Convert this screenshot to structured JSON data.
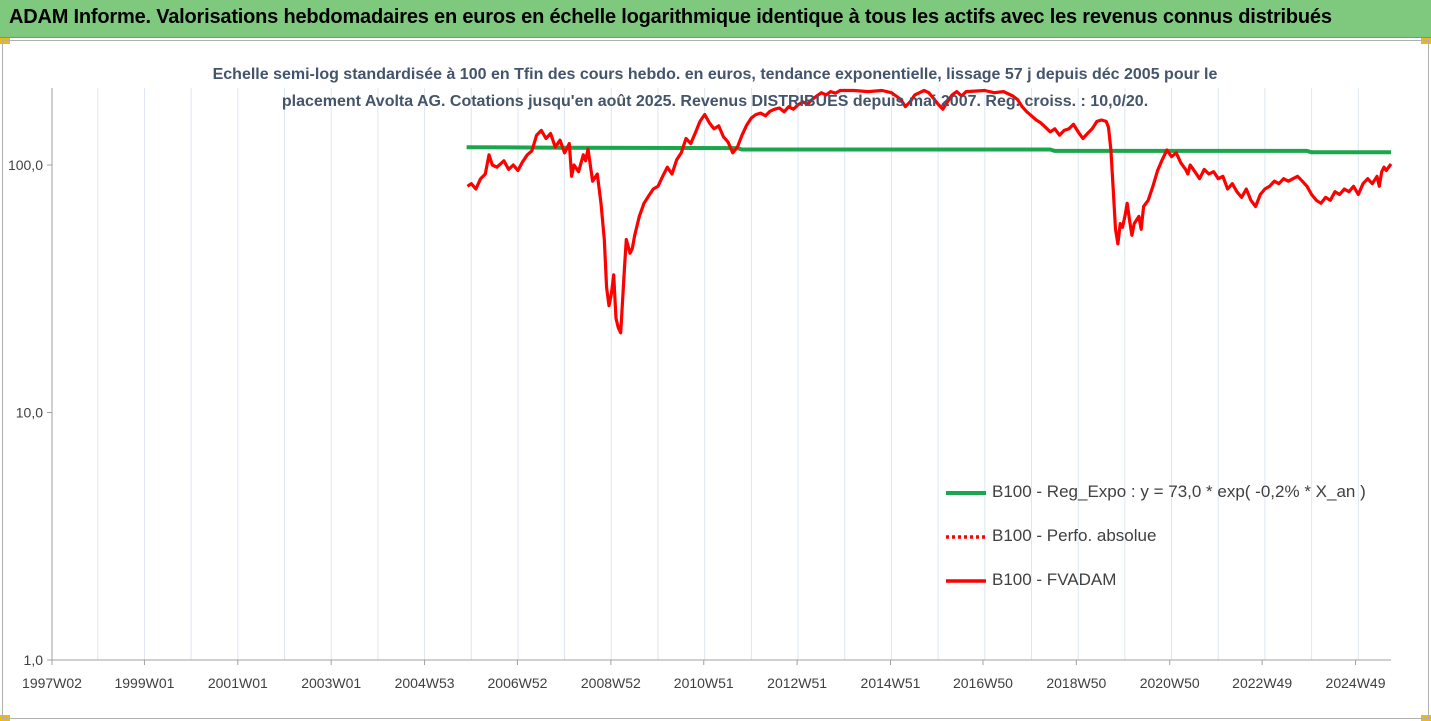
{
  "header": {
    "title": "ADAM Informe. Valorisations hebdomadaires en euros en échelle logarithmique identique à tous les actifs avec les revenus connus distribués"
  },
  "chart_data": {
    "type": "line",
    "subtitle_line1": "Echelle semi-log standardisée à 100 en Tfin des cours hebdo. en euros, tendance exponentielle, lissage 57 j depuis déc 2005 pour le",
    "subtitle_line2": "placement Avolta AG. Cotations jusqu'en août 2025.  Revenus DISTRIBUES depuis mai 2007. Reg. croiss. : 10,0/20.",
    "y_scale": "log",
    "ylim": [
      1,
      200
    ],
    "y_ticks": [
      {
        "value": 1,
        "label": "1,0"
      },
      {
        "value": 10,
        "label": "10,0"
      },
      {
        "value": 100,
        "label": "100,0"
      }
    ],
    "xlim": [
      1997.02,
      2025.7
    ],
    "x_ticks": [
      {
        "value": 1997.02,
        "label": "1997W02"
      },
      {
        "value": 1999.0,
        "label": "1999W01"
      },
      {
        "value": 2001.0,
        "label": "2001W01"
      },
      {
        "value": 2003.0,
        "label": "2003W01"
      },
      {
        "value": 2005.0,
        "label": "2004W53"
      },
      {
        "value": 2006.99,
        "label": "2006W52"
      },
      {
        "value": 2008.99,
        "label": "2008W52"
      },
      {
        "value": 2010.98,
        "label": "2010W51"
      },
      {
        "value": 2012.98,
        "label": "2012W51"
      },
      {
        "value": 2014.98,
        "label": "2014W51"
      },
      {
        "value": 2016.96,
        "label": "2016W50"
      },
      {
        "value": 2018.96,
        "label": "2018W50"
      },
      {
        "value": 2020.96,
        "label": "2020W50"
      },
      {
        "value": 2022.94,
        "label": "2022W49"
      },
      {
        "value": 2024.94,
        "label": "2024W49"
      }
    ],
    "grid": "vertical",
    "legend_position": "lower-right",
    "series": [
      {
        "name": "B100 - Reg_Expo : y = 73,0 * exp( -0,2% *  X_an )",
        "color": "#1aa64a",
        "style": "solid",
        "points": [
          [
            2005.9,
            118
          ],
          [
            2008.0,
            117.5
          ],
          [
            2011.7,
            117
          ],
          [
            2011.8,
            115.5
          ],
          [
            2018.4,
            115.5
          ],
          [
            2018.5,
            114
          ],
          [
            2023.9,
            114
          ],
          [
            2024.0,
            112.5
          ],
          [
            2025.7,
            112.5
          ]
        ]
      },
      {
        "name": "B100 - Perfo. absolue",
        "color": "#ff0000",
        "style": "dotted",
        "points": []
      },
      {
        "name": "B100 - FVADAM",
        "color": "#ff0000",
        "style": "solid",
        "points": [
          [
            2005.92,
            82
          ],
          [
            2006.0,
            84
          ],
          [
            2006.1,
            80
          ],
          [
            2006.2,
            88
          ],
          [
            2006.3,
            92
          ],
          [
            2006.38,
            110
          ],
          [
            2006.45,
            100
          ],
          [
            2006.55,
            98
          ],
          [
            2006.7,
            104
          ],
          [
            2006.8,
            96
          ],
          [
            2006.9,
            100
          ],
          [
            2007.0,
            95
          ],
          [
            2007.1,
            103
          ],
          [
            2007.2,
            110
          ],
          [
            2007.3,
            114
          ],
          [
            2007.4,
            132
          ],
          [
            2007.5,
            138
          ],
          [
            2007.6,
            128
          ],
          [
            2007.7,
            134
          ],
          [
            2007.8,
            118
          ],
          [
            2007.9,
            126
          ],
          [
            2008.0,
            112
          ],
          [
            2008.1,
            122
          ],
          [
            2008.15,
            90
          ],
          [
            2008.2,
            100
          ],
          [
            2008.3,
            94
          ],
          [
            2008.4,
            110
          ],
          [
            2008.45,
            104
          ],
          [
            2008.5,
            116
          ],
          [
            2008.55,
            100
          ],
          [
            2008.6,
            86
          ],
          [
            2008.7,
            92
          ],
          [
            2008.78,
            70
          ],
          [
            2008.85,
            50
          ],
          [
            2008.9,
            32
          ],
          [
            2008.95,
            27
          ],
          [
            2009.0,
            30
          ],
          [
            2009.05,
            36
          ],
          [
            2009.1,
            24
          ],
          [
            2009.15,
            22
          ],
          [
            2009.2,
            21
          ],
          [
            2009.28,
            38
          ],
          [
            2009.32,
            50
          ],
          [
            2009.4,
            44
          ],
          [
            2009.45,
            46
          ],
          [
            2009.5,
            52
          ],
          [
            2009.6,
            62
          ],
          [
            2009.7,
            70
          ],
          [
            2009.8,
            75
          ],
          [
            2009.9,
            80
          ],
          [
            2010.0,
            82
          ],
          [
            2010.1,
            90
          ],
          [
            2010.2,
            98
          ],
          [
            2010.3,
            92
          ],
          [
            2010.4,
            105
          ],
          [
            2010.5,
            112
          ],
          [
            2010.6,
            128
          ],
          [
            2010.7,
            122
          ],
          [
            2010.8,
            135
          ],
          [
            2010.9,
            150
          ],
          [
            2011.0,
            160
          ],
          [
            2011.1,
            148
          ],
          [
            2011.2,
            140
          ],
          [
            2011.3,
            144
          ],
          [
            2011.4,
            130
          ],
          [
            2011.5,
            124
          ],
          [
            2011.6,
            112
          ],
          [
            2011.7,
            118
          ],
          [
            2011.8,
            132
          ],
          [
            2011.9,
            145
          ],
          [
            2012.0,
            155
          ],
          [
            2012.1,
            160
          ],
          [
            2012.2,
            162
          ],
          [
            2012.3,
            158
          ],
          [
            2012.4,
            165
          ],
          [
            2012.5,
            168
          ],
          [
            2012.6,
            170
          ],
          [
            2012.7,
            164
          ],
          [
            2012.8,
            172
          ],
          [
            2012.9,
            168
          ],
          [
            2013.0,
            175
          ],
          [
            2013.1,
            180
          ],
          [
            2013.2,
            176
          ],
          [
            2013.3,
            184
          ],
          [
            2013.4,
            190
          ],
          [
            2013.5,
            196
          ],
          [
            2013.6,
            192
          ],
          [
            2013.7,
            198
          ],
          [
            2013.8,
            195
          ],
          [
            2013.9,
            200
          ],
          [
            2014.2,
            200
          ],
          [
            2014.5,
            198
          ],
          [
            2014.8,
            200
          ],
          [
            2015.0,
            196
          ],
          [
            2015.1,
            190
          ],
          [
            2015.2,
            184
          ],
          [
            2015.3,
            172
          ],
          [
            2015.4,
            180
          ],
          [
            2015.5,
            192
          ],
          [
            2015.6,
            196
          ],
          [
            2015.7,
            200
          ],
          [
            2015.8,
            196
          ],
          [
            2015.9,
            186
          ],
          [
            2016.0,
            176
          ],
          [
            2016.1,
            168
          ],
          [
            2016.2,
            180
          ],
          [
            2016.3,
            192
          ],
          [
            2016.4,
            198
          ],
          [
            2016.5,
            190
          ],
          [
            2016.6,
            198
          ],
          [
            2017.0,
            200
          ],
          [
            2017.2,
            196
          ],
          [
            2017.4,
            198
          ],
          [
            2017.6,
            190
          ],
          [
            2017.7,
            184
          ],
          [
            2017.8,
            172
          ],
          [
            2017.9,
            164
          ],
          [
            2018.0,
            158
          ],
          [
            2018.1,
            152
          ],
          [
            2018.2,
            148
          ],
          [
            2018.3,
            142
          ],
          [
            2018.4,
            136
          ],
          [
            2018.5,
            140
          ],
          [
            2018.6,
            132
          ],
          [
            2018.7,
            138
          ],
          [
            2018.8,
            140
          ],
          [
            2018.9,
            146
          ],
          [
            2019.0,
            136
          ],
          [
            2019.1,
            128
          ],
          [
            2019.2,
            134
          ],
          [
            2019.3,
            140
          ],
          [
            2019.4,
            150
          ],
          [
            2019.5,
            152
          ],
          [
            2019.6,
            150
          ],
          [
            2019.65,
            142
          ],
          [
            2019.7,
            115
          ],
          [
            2019.75,
            80
          ],
          [
            2019.8,
            55
          ],
          [
            2019.85,
            48
          ],
          [
            2019.9,
            58
          ],
          [
            2019.95,
            56
          ],
          [
            2020.0,
            62
          ],
          [
            2020.05,
            70
          ],
          [
            2020.1,
            60
          ],
          [
            2020.15,
            52
          ],
          [
            2020.2,
            58
          ],
          [
            2020.3,
            62
          ],
          [
            2020.35,
            55
          ],
          [
            2020.4,
            68
          ],
          [
            2020.5,
            72
          ],
          [
            2020.6,
            82
          ],
          [
            2020.7,
            95
          ],
          [
            2020.8,
            105
          ],
          [
            2020.85,
            110
          ],
          [
            2020.9,
            115
          ],
          [
            2021.0,
            108
          ],
          [
            2021.1,
            112
          ],
          [
            2021.2,
            102
          ],
          [
            2021.3,
            96
          ],
          [
            2021.35,
            92
          ],
          [
            2021.4,
            100
          ],
          [
            2021.5,
            94
          ],
          [
            2021.6,
            88
          ],
          [
            2021.7,
            96
          ],
          [
            2021.8,
            92
          ],
          [
            2021.9,
            94
          ],
          [
            2022.0,
            88
          ],
          [
            2022.1,
            90
          ],
          [
            2022.2,
            80
          ],
          [
            2022.3,
            84
          ],
          [
            2022.4,
            78
          ],
          [
            2022.5,
            74
          ],
          [
            2022.6,
            80
          ],
          [
            2022.7,
            72
          ],
          [
            2022.8,
            68
          ],
          [
            2022.9,
            76
          ],
          [
            2023.0,
            80
          ],
          [
            2023.1,
            82
          ],
          [
            2023.2,
            86
          ],
          [
            2023.3,
            84
          ],
          [
            2023.4,
            88
          ],
          [
            2023.5,
            86
          ],
          [
            2023.6,
            88
          ],
          [
            2023.7,
            90
          ],
          [
            2023.8,
            86
          ],
          [
            2023.9,
            82
          ],
          [
            2024.0,
            76
          ],
          [
            2024.1,
            72
          ],
          [
            2024.2,
            70
          ],
          [
            2024.3,
            74
          ],
          [
            2024.4,
            72
          ],
          [
            2024.5,
            78
          ],
          [
            2024.6,
            76
          ],
          [
            2024.7,
            80
          ],
          [
            2024.8,
            78
          ],
          [
            2024.9,
            82
          ],
          [
            2025.0,
            76
          ],
          [
            2025.1,
            84
          ],
          [
            2025.2,
            88
          ],
          [
            2025.3,
            84
          ],
          [
            2025.4,
            90
          ],
          [
            2025.45,
            82
          ],
          [
            2025.5,
            94
          ],
          [
            2025.55,
            98
          ],
          [
            2025.6,
            95
          ],
          [
            2025.7,
            101
          ]
        ]
      }
    ]
  }
}
